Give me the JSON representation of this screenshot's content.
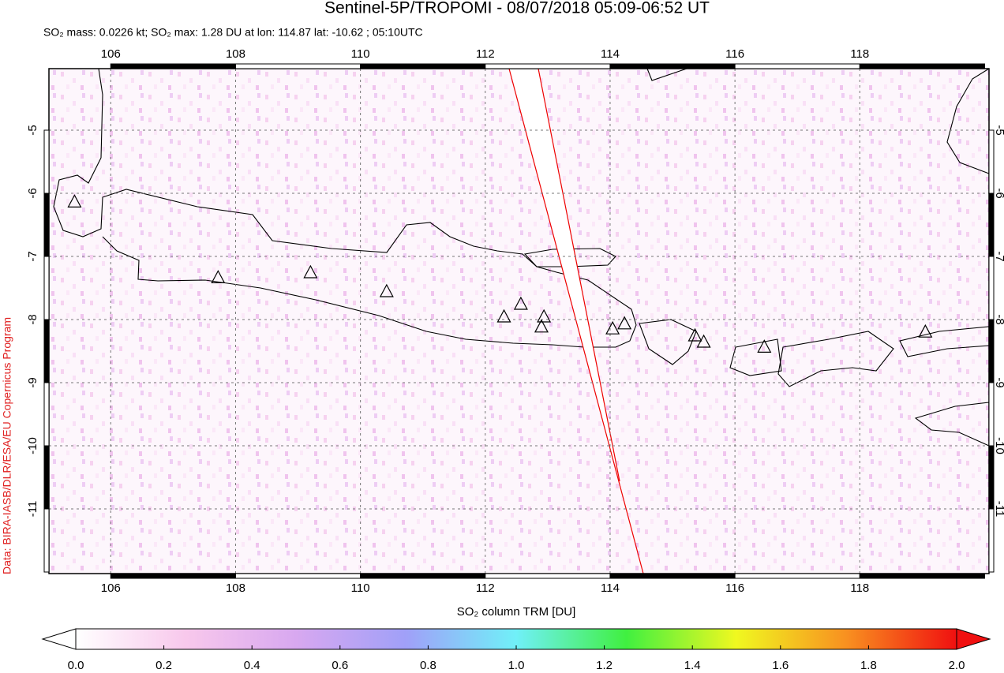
{
  "chart_data": {
    "type": "map",
    "title": "Sentinel-5P/TROPOMI - 08/07/2018 05:09-06:52 UT",
    "subtitle": "SO₂ mass: 0.0226 kt; SO₂ max: 1.28 DU at lon: 114.87 lat: -10.62 ; 05:10UTC",
    "credit": "Data: BIRA-IASB/DLR/ESA/EU Copernicus Program",
    "xlim": [
      105.01,
      120.07
    ],
    "ylim": [
      -12.025,
      -4.025
    ],
    "xticks": [
      106,
      108,
      110,
      112,
      114,
      116,
      118
    ],
    "yticks": [
      -5,
      -6,
      -7,
      -8,
      -9,
      -10,
      -11
    ],
    "grid": true,
    "volcanoes": {
      "lon": [
        105.42,
        107.72,
        109.2,
        110.42,
        112.3,
        112.57,
        112.94,
        112.9,
        114.04,
        114.23,
        115.36,
        115.5,
        116.47,
        119.05
      ],
      "lat": [
        -6.13,
        -7.33,
        -7.25,
        -7.55,
        -7.95,
        -7.75,
        -7.95,
        -8.11,
        -8.14,
        -8.06,
        -8.25,
        -8.35,
        -8.43,
        -8.19
      ]
    },
    "colorbar": {
      "label": "SO₂ column TRM [DU]",
      "lim": [
        0,
        2
      ],
      "ticks": [
        {
          "value": 0,
          "label": "0.0"
        },
        0.2,
        0.4,
        0.6,
        0.8,
        {
          "value": 1,
          "label": "1.0"
        },
        1.2,
        1.4,
        1.6,
        1.8,
        {
          "value": 2,
          "label": "2.0"
        }
      ],
      "colors": [
        "#ffffff",
        "#f8c8ec",
        "#d8a8f0",
        "#a0a0f8",
        "#70f0f8",
        "#40f040",
        "#f0f820",
        "#f89020",
        "#f01010"
      ]
    }
  }
}
